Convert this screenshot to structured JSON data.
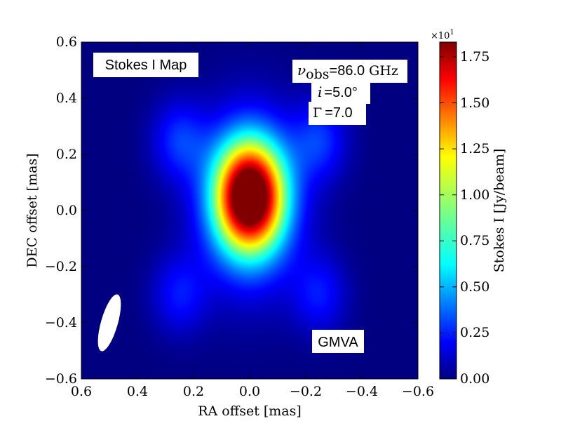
{
  "chart_data": {
    "type": "heatmap",
    "title": "",
    "xlabel": "RA offset [mas]",
    "ylabel": "DEC offset [mas]",
    "xlim": [
      0.6,
      -0.6
    ],
    "ylim": [
      -0.6,
      0.6
    ],
    "x_ticks": [
      "0.6",
      "0.4",
      "0.2",
      "0.0",
      "−0.2",
      "−0.4",
      "−0.6"
    ],
    "y_ticks": [
      "−0.6",
      "−0.4",
      "−0.2",
      "0.0",
      "0.2",
      "0.4",
      "0.6"
    ],
    "colorbar": {
      "label": "Stokes I [Jy/beam]",
      "multiplier": "×10",
      "multiplier_exp": "1",
      "range": [
        0.0,
        1.83
      ],
      "ticks": [
        "0.00",
        "0.25",
        "0.50",
        "0.75",
        "1.00",
        "1.25",
        "1.50",
        "1.75"
      ],
      "tick_values": [
        0.0,
        0.25,
        0.5,
        0.75,
        1.0,
        1.25,
        1.5,
        1.75
      ],
      "colormap": "jet"
    },
    "features": {
      "core": {
        "ra": 0.0,
        "dec": 0.05,
        "peak_value": 1.83,
        "sigma_ra": 0.085,
        "sigma_dec": 0.135
      },
      "faint_lobes": [
        {
          "ra": 0.25,
          "dec": 0.25,
          "peak_value": 0.3
        },
        {
          "ra": -0.25,
          "dec": 0.25,
          "peak_value": 0.3
        },
        {
          "ra": 0.25,
          "dec": -0.3,
          "peak_value": 0.25
        },
        {
          "ra": -0.25,
          "dec": -0.3,
          "peak_value": 0.25
        }
      ]
    },
    "beam": {
      "ra": 0.5,
      "dec": -0.4,
      "color": "#ffffff"
    },
    "annotations": {
      "map_title": "Stokes I Map",
      "nu_symbol": "ν",
      "nu_subscript": "obs",
      "nu_value": "=86.0",
      "nu_unit": " GHz",
      "incl_symbol": "i",
      "incl_value": "=5.0°",
      "gamma_symbol": "Γ",
      "gamma_value": "=7.0",
      "array": "GMVA"
    }
  }
}
